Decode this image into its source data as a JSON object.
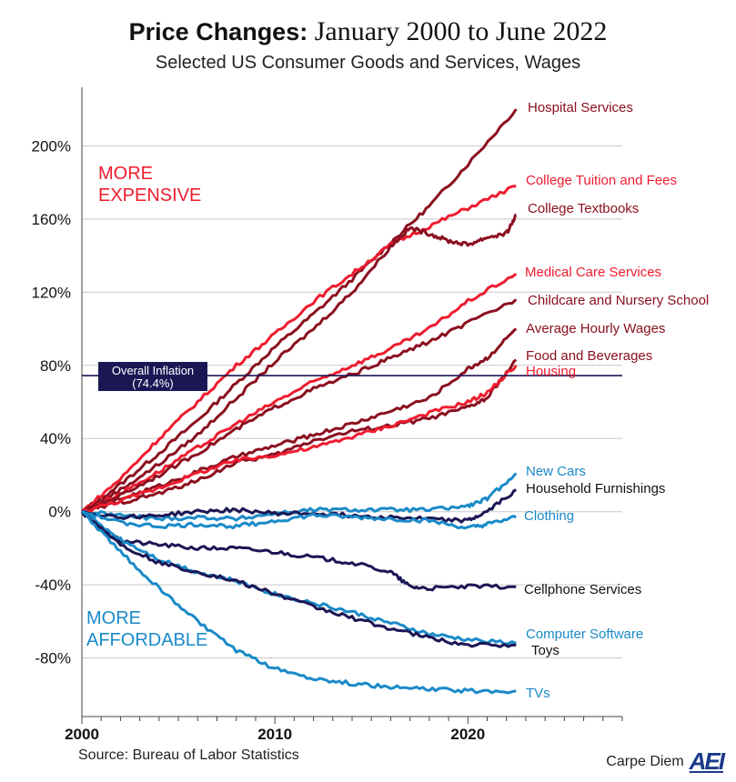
{
  "header": {
    "title_bold": "Price Changes:",
    "title_rest": "January 2000 to June 2022",
    "subtitle": "Selected US Consumer Goods and Services, Wages"
  },
  "footer": {
    "source": "Source: Bureau of Labor Statistics",
    "brand_text": "Carpe Diem",
    "brand_logo": "AEI"
  },
  "colors": {
    "dark_red": "#8b1020",
    "bright_red": "#ee1c2e",
    "dark_navy": "#1b1755",
    "light_blue": "#1a8ac8",
    "inflation_line": "#1b1755"
  },
  "chart_data": {
    "type": "line",
    "title": "Price Changes: January 2000 to June 2022",
    "subtitle": "Selected US Consumer Goods and Services, Wages",
    "xlabel": "",
    "ylabel": "",
    "xlim": [
      2000,
      2028
    ],
    "ylim": [
      -112,
      232
    ],
    "x_ticks": [
      2000,
      2010,
      2020
    ],
    "x_tick_labels": [
      "2000",
      "2010",
      "2020"
    ],
    "y_ticks": [
      200,
      160,
      120,
      80,
      40,
      0,
      -40,
      -80
    ],
    "y_tick_labels": [
      "200%",
      "160%",
      "120%",
      "80%",
      "40%",
      "0%",
      "-40%",
      "-80%"
    ],
    "grid": true,
    "region_labels": {
      "expensive": [
        "MORE",
        "EXPENSIVE"
      ],
      "affordable": [
        "MORE",
        "AFFORDABLE"
      ]
    },
    "reference_line": {
      "value": 74.4,
      "label_line1": "Overall Inflation",
      "label_line2": "(74.4%)"
    },
    "series": [
      {
        "name": "Hospital Services",
        "color": "#8b1020",
        "x": [
          2000,
          2002,
          2004,
          2006,
          2008,
          2010,
          2012,
          2014,
          2016,
          2018,
          2020,
          2022.5
        ],
        "y": [
          0,
          15,
          32,
          50,
          70,
          90,
          108,
          127,
          147,
          167,
          190,
          220
        ]
      },
      {
        "name": "College Tuition and Fees",
        "color": "#ee1c2e",
        "x": [
          2000,
          2002,
          2004,
          2006,
          2008,
          2010,
          2012,
          2014,
          2016,
          2018,
          2020,
          2022.5
        ],
        "y": [
          0,
          18,
          40,
          60,
          80,
          97,
          115,
          130,
          146,
          156,
          166,
          178
        ]
      },
      {
        "name": "College Textbooks",
        "color": "#8b1020",
        "x": [
          2000,
          2002,
          2004,
          2006,
          2008,
          2010,
          2012,
          2014,
          2016,
          2017,
          2018,
          2019,
          2020,
          2021,
          2022,
          2022.5
        ],
        "y": [
          0,
          12,
          26,
          42,
          62,
          82,
          100,
          120,
          145,
          155,
          152,
          148,
          146,
          150,
          152,
          162
        ]
      },
      {
        "name": "Medical Care Services",
        "color": "#ee1c2e",
        "x": [
          2000,
          2002,
          2004,
          2006,
          2008,
          2010,
          2012,
          2014,
          2016,
          2018,
          2020,
          2022.5
        ],
        "y": [
          0,
          10,
          22,
          35,
          48,
          60,
          71,
          80,
          89,
          100,
          115,
          130
        ]
      },
      {
        "name": "Childcare and Nursery School",
        "color": "#8b1020",
        "x": [
          2000,
          2002,
          2004,
          2006,
          2008,
          2010,
          2012,
          2014,
          2016,
          2018,
          2020,
          2022.5
        ],
        "y": [
          0,
          9,
          20,
          32,
          45,
          57,
          67,
          75,
          84,
          93,
          103,
          116
        ]
      },
      {
        "name": "Average Hourly Wages",
        "color": "#8b1020",
        "x": [
          2000,
          2002,
          2004,
          2006,
          2008,
          2010,
          2012,
          2014,
          2016,
          2018,
          2020,
          2021,
          2022.5
        ],
        "y": [
          0,
          7,
          14,
          22,
          30,
          36,
          42,
          48,
          55,
          62,
          78,
          84,
          100
        ]
      },
      {
        "name": "Food and Beverages",
        "color": "#8b1020",
        "x": [
          2000,
          2002,
          2004,
          2006,
          2008,
          2010,
          2012,
          2014,
          2016,
          2018,
          2020,
          2021,
          2022.5
        ],
        "y": [
          0,
          5,
          10,
          17,
          27,
          31,
          39,
          44,
          47,
          51,
          57,
          62,
          83
        ]
      },
      {
        "name": "Housing",
        "color": "#ee1c2e",
        "x": [
          2000,
          2002,
          2004,
          2006,
          2008,
          2010,
          2012,
          2014,
          2016,
          2018,
          2020,
          2021,
          2022.5
        ],
        "y": [
          0,
          6,
          13,
          21,
          28,
          31,
          35,
          41,
          47,
          54,
          60,
          65,
          80
        ]
      },
      {
        "name": "New Cars",
        "color": "#1a8ac8",
        "x": [
          2000,
          2002,
          2004,
          2006,
          2008,
          2010,
          2012,
          2014,
          2016,
          2018,
          2020,
          2021,
          2022.5
        ],
        "y": [
          0,
          -2,
          -4,
          -3,
          -4,
          -1,
          1,
          1,
          1,
          1,
          3,
          7,
          21
        ]
      },
      {
        "name": "Household Furnishings",
        "color": "#1b1755",
        "x": [
          2000,
          2002,
          2004,
          2006,
          2008,
          2010,
          2012,
          2014,
          2016,
          2018,
          2020,
          2021,
          2022.5
        ],
        "y": [
          0,
          -3,
          -2,
          0,
          1,
          -1,
          -1,
          -2,
          -3,
          -4,
          -5,
          0,
          12
        ]
      },
      {
        "name": "Clothing",
        "color": "#1a8ac8",
        "x": [
          2000,
          2002,
          2004,
          2006,
          2008,
          2010,
          2012,
          2014,
          2016,
          2018,
          2020,
          2021,
          2022.5
        ],
        "y": [
          0,
          -6,
          -8,
          -7,
          -8,
          -5,
          -2,
          -3,
          -4,
          -5,
          -9,
          -7,
          -3
        ]
      },
      {
        "name": "Cellphone Services",
        "color": "#1b1755",
        "x": [
          2000,
          2001,
          2002,
          2004,
          2006,
          2008,
          2010,
          2012,
          2014,
          2016,
          2017,
          2018,
          2020,
          2022.5
        ],
        "y": [
          0,
          -10,
          -16,
          -18,
          -20,
          -20,
          -22,
          -25,
          -28,
          -33,
          -41,
          -42,
          -41,
          -41
        ]
      },
      {
        "name": "Computer Software",
        "color": "#1a8ac8",
        "x": [
          2000,
          2002,
          2004,
          2006,
          2008,
          2010,
          2012,
          2014,
          2016,
          2018,
          2020,
          2022.5
        ],
        "y": [
          0,
          -15,
          -26,
          -33,
          -38,
          -45,
          -50,
          -55,
          -61,
          -67,
          -70,
          -72
        ]
      },
      {
        "name": "Toys",
        "color": "#1b1755",
        "x": [
          2000,
          2002,
          2004,
          2006,
          2008,
          2010,
          2012,
          2014,
          2016,
          2018,
          2020,
          2022.5
        ],
        "y": [
          0,
          -18,
          -28,
          -33,
          -38,
          -45,
          -52,
          -58,
          -64,
          -69,
          -73,
          -73
        ]
      },
      {
        "name": "TVs",
        "color": "#1a8ac8",
        "x": [
          2000,
          2002,
          2004,
          2006,
          2008,
          2010,
          2012,
          2014,
          2016,
          2018,
          2020,
          2022.5
        ],
        "y": [
          0,
          -22,
          -42,
          -60,
          -76,
          -86,
          -91,
          -94,
          -96,
          -97,
          -98,
          -98
        ]
      }
    ]
  }
}
